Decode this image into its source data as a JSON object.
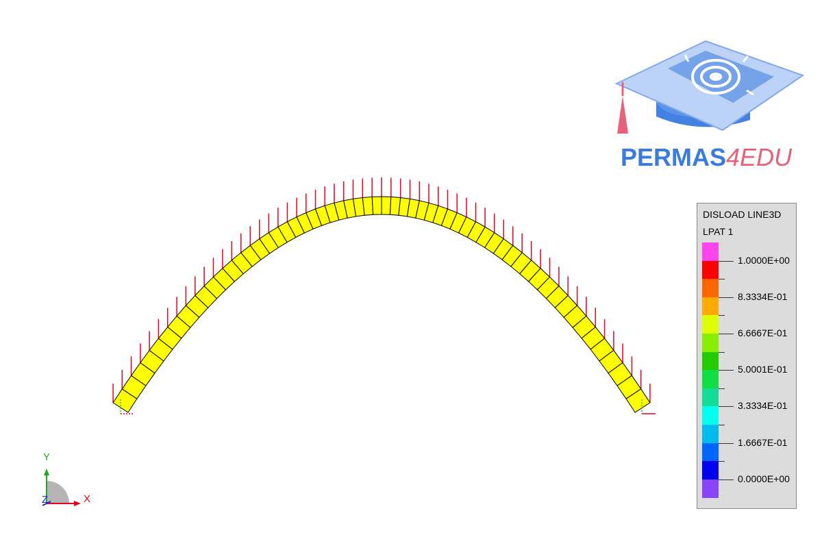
{
  "logo": {
    "brand_main": "PERMAS",
    "brand_suffix": "4EDU",
    "main_color": "#3a7be0",
    "suffix_color": "#e8607a"
  },
  "legend": {
    "title_line1": "DISLOAD LINE3D",
    "title_line2": "LPAT 1",
    "colors": [
      "#ff44ee",
      "#ff0000",
      "#ff6600",
      "#ffaa00",
      "#ddff00",
      "#88ee00",
      "#22cc00",
      "#11dd44",
      "#11dd99",
      "#00ffee",
      "#00bbee",
      "#0066ff",
      "#0000ee",
      "#8844ff"
    ],
    "tick_labels": [
      "1.0000E+00",
      "8.3334E-01",
      "6.6667E-01",
      "5.0001E-01",
      "3.3334E-01",
      "1.6667E-01",
      "0.0000E+00"
    ]
  },
  "model": {
    "element_color": "#ffff00",
    "element_count": 58,
    "load_color": "#e8001c",
    "load_value": 1.0
  },
  "triad": {
    "x_label": "X",
    "y_label": "Y",
    "z_label": "Z",
    "x_color": "#e8001c",
    "y_color": "#22aa22",
    "z_color": "#1a2bdd"
  }
}
